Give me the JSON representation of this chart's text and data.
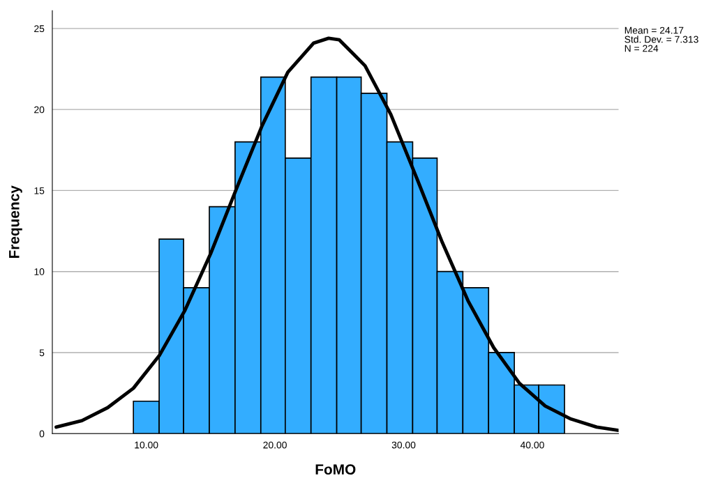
{
  "chart_data": {
    "type": "histogram",
    "xlabel": "FoMO",
    "ylabel": "Frequency",
    "bins": [
      9.0,
      11.0,
      12.9,
      14.9,
      16.9,
      18.9,
      20.8,
      22.8,
      24.8,
      26.7,
      28.7,
      30.7,
      32.6,
      34.6,
      36.6,
      38.6,
      40.5,
      42.5
    ],
    "values": [
      2,
      12,
      9,
      14,
      18,
      22,
      17,
      22,
      22,
      21,
      18,
      17,
      10,
      9,
      5,
      3,
      3
    ],
    "color": "#33adff",
    "series": [
      {
        "type": "line",
        "color": "#000000",
        "x": [
          3,
          5,
          7,
          9,
          11,
          13,
          15,
          17,
          19,
          21,
          23,
          24.17,
          25,
          27,
          29,
          31,
          33,
          35,
          37,
          39,
          41,
          43,
          45,
          46.7
        ],
        "values": [
          0.4,
          0.8,
          1.6,
          2.8,
          4.8,
          7.6,
          11.1,
          15.1,
          19.0,
          22.3,
          24.1,
          24.4,
          24.3,
          22.7,
          19.7,
          15.8,
          11.8,
          8.2,
          5.3,
          3.1,
          1.7,
          0.9,
          0.4,
          0.2
        ]
      }
    ],
    "xlim": [
      2.7,
      46.7
    ],
    "ylim": [
      0,
      26.1
    ],
    "xticks": [
      {
        "value": 10,
        "label": "10.00"
      },
      {
        "value": 20,
        "label": "20.00"
      },
      {
        "value": 30,
        "label": "30.00"
      },
      {
        "value": 40,
        "label": "40.00"
      }
    ],
    "yticks": [
      0,
      5,
      10,
      15,
      20,
      25
    ],
    "grid": "y",
    "annotations": [
      "Mean = 24.17\nStd. Dev. = 7.313\nN = 224"
    ]
  }
}
